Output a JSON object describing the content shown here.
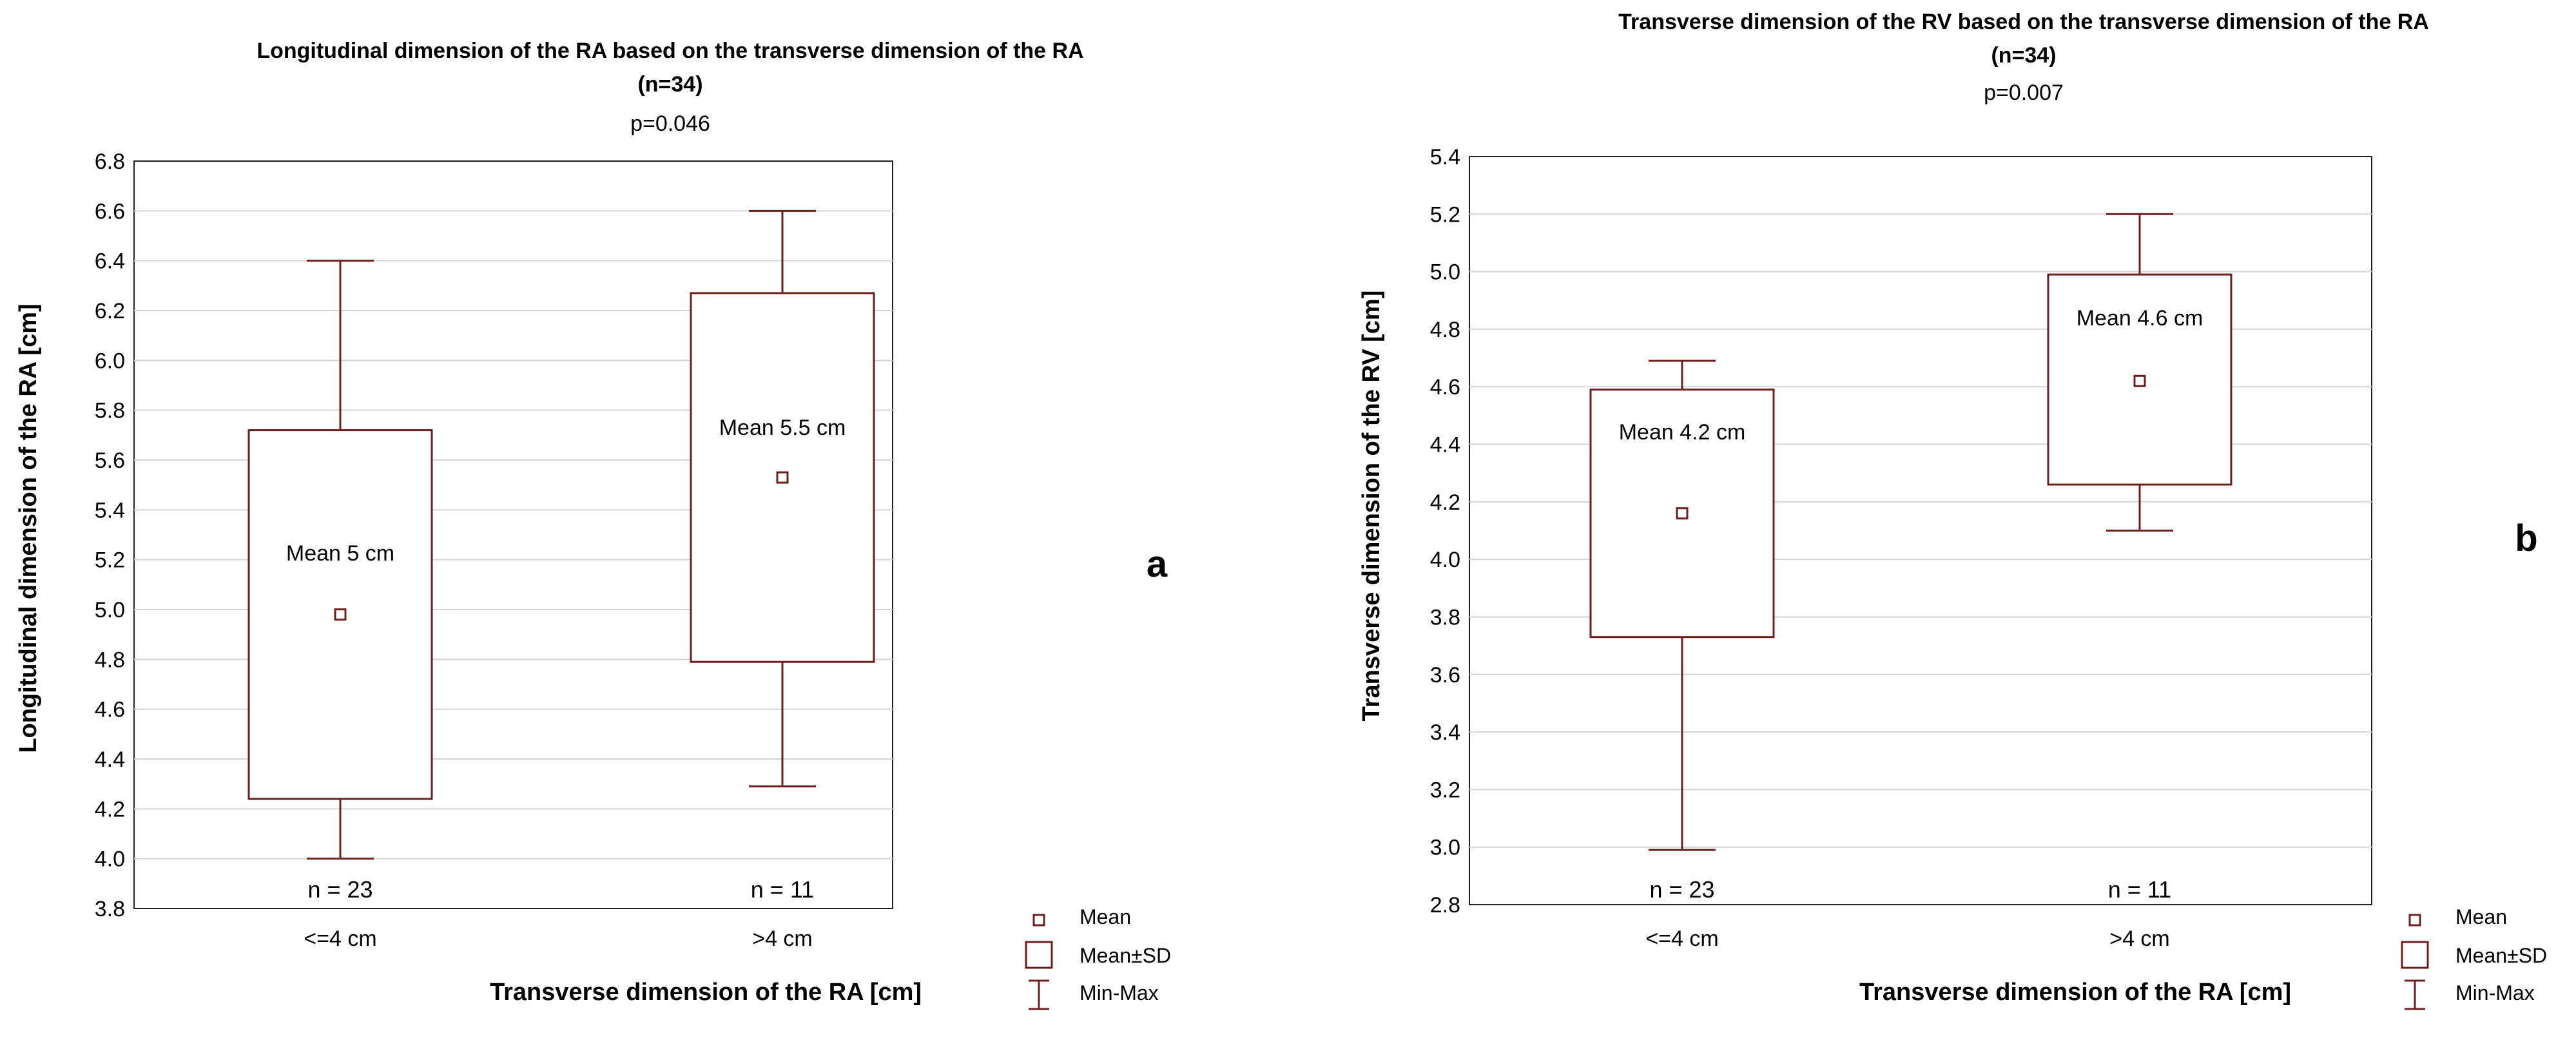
{
  "chart_data": [
    {
      "type": "box",
      "panel_label": "a",
      "title": "Longitudinal dimension of the RA based on the transverse dimension of the RA",
      "subtitle": "(n=34)",
      "pvalue": "p=0.046",
      "xlabel": "Transverse dimension of the RA [cm]",
      "ylabel": "Longitudinal dimension of the RA [cm]",
      "ylim": [
        3.8,
        6.8
      ],
      "yticks": [
        "6.8",
        "6.6",
        "6.4",
        "6.2",
        "6.0",
        "5.8",
        "5.6",
        "5.4",
        "5.2",
        "5.0",
        "4.8",
        "4.6",
        "4.4",
        "4.2",
        "4.0",
        "3.8"
      ],
      "grid": true,
      "categories": [
        "<=4 cm",
        ">4 cm"
      ],
      "groups": [
        {
          "category": "<=4 cm",
          "n_label": "n = 23",
          "mean": 4.98,
          "sd_low": 4.24,
          "sd_high": 5.72,
          "min": 4.0,
          "max": 6.4,
          "mean_label": "Mean 5 cm"
        },
        {
          "category": ">4 cm",
          "n_label": "n = 11",
          "mean": 5.53,
          "sd_low": 4.79,
          "sd_high": 6.27,
          "min": 4.29,
          "max": 6.6,
          "mean_label": "Mean 5.5 cm"
        }
      ],
      "legend": [
        "Mean",
        "Mean±SD",
        "Min-Max"
      ],
      "legend_position": "bottom-right",
      "color": "#6b1f1f"
    },
    {
      "type": "box",
      "panel_label": "b",
      "title": "Transverse dimension of the RV based on the transverse dimension of the RA",
      "subtitle": "(n=34)",
      "pvalue": "p=0.007",
      "xlabel": "Transverse dimension of the RA [cm]",
      "ylabel": "Transverse  dimension of the RV [cm]",
      "ylim": [
        2.8,
        5.4
      ],
      "yticks": [
        "5.4",
        "5.2",
        "5.0",
        "4.8",
        "4.6",
        "4.4",
        "4.2",
        "4.0",
        "3.8",
        "3.6",
        "3.4",
        "3.2",
        "3.0",
        "2.8"
      ],
      "grid": true,
      "categories": [
        "<=4 cm",
        ">4 cm"
      ],
      "groups": [
        {
          "category": "<=4 cm",
          "n_label": "n = 23",
          "mean": 4.16,
          "sd_low": 3.73,
          "sd_high": 4.59,
          "min": 2.99,
          "max": 4.69,
          "mean_label": "Mean 4.2 cm"
        },
        {
          "category": ">4 cm",
          "n_label": "n = 11",
          "mean": 4.62,
          "sd_low": 4.26,
          "sd_high": 4.99,
          "min": 4.1,
          "max": 5.2,
          "mean_label": "Mean 4.6 cm"
        }
      ],
      "legend": [
        "Mean",
        "Mean±SD",
        "Min-Max"
      ],
      "legend_position": "bottom-right",
      "color": "#6b1f1f"
    }
  ]
}
